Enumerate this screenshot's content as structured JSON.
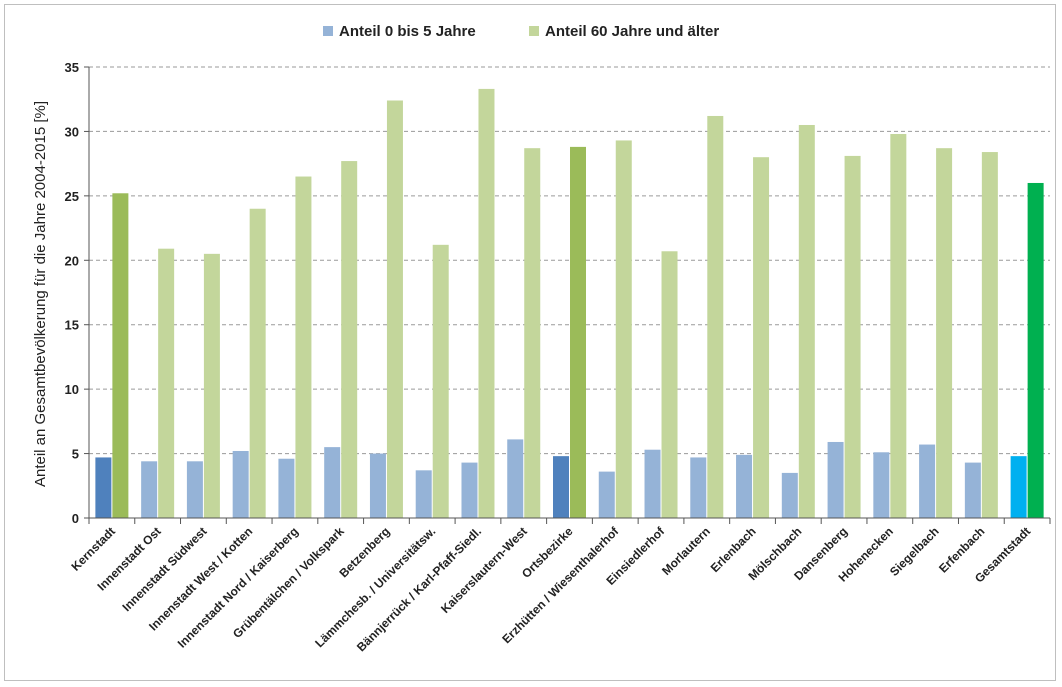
{
  "chart_data": {
    "type": "bar",
    "title": "",
    "ylabel": "Anteil an Gesamtbevölkerung für die Jahre 2004-2015 [%]",
    "xlabel": "",
    "ylim": [
      0,
      35
    ],
    "yticks": [
      0,
      5,
      10,
      15,
      20,
      25,
      30,
      35
    ],
    "grid": true,
    "legend_position": "top-center",
    "categories": [
      "Kernstadt",
      "Innenstadt Ost",
      "Innenstadt Südwest",
      "Innenstadt West / Kotten",
      "Innenstadt Nord / Kaiserberg",
      "Grübentälchen / Volkspark",
      "Betzenberg",
      "Lämmchesb. / Universitätsw.",
      "Bännjerrück / Karl-Pfaff-Siedl.",
      "Kaiserslautern-West",
      "Ortsbezirke",
      "Erzhütten / Wiesenthalerhof",
      "Einsiedlerhof",
      "Morlautern",
      "Erlenbach",
      "Mölschbach",
      "Dansenberg",
      "Hohenecken",
      "Siegelbach",
      "Erfenbach",
      "Gesamtstadt"
    ],
    "series": [
      {
        "name": "Anteil 0 bis 5 Jahre",
        "color": "#95b3d7",
        "highlight_colors": {
          "0": "#4f81bd",
          "10": "#4f81bd",
          "20": "#00b0f0"
        },
        "values": [
          4.7,
          4.4,
          4.4,
          5.2,
          4.6,
          5.5,
          5.0,
          3.7,
          4.3,
          6.1,
          4.8,
          3.6,
          5.3,
          4.7,
          4.9,
          3.5,
          5.9,
          5.1,
          5.7,
          4.3,
          4.8
        ]
      },
      {
        "name": "Anteil 60 Jahre und älter",
        "color": "#c3d69b",
        "highlight_colors": {
          "0": "#9bbb59",
          "10": "#9bbb59",
          "20": "#00b050"
        },
        "values": [
          25.2,
          20.9,
          20.5,
          24.0,
          26.5,
          27.7,
          32.4,
          21.2,
          33.3,
          28.7,
          28.8,
          29.3,
          20.7,
          31.2,
          28.0,
          30.5,
          28.1,
          29.8,
          28.7,
          28.4,
          26.0
        ]
      }
    ]
  }
}
